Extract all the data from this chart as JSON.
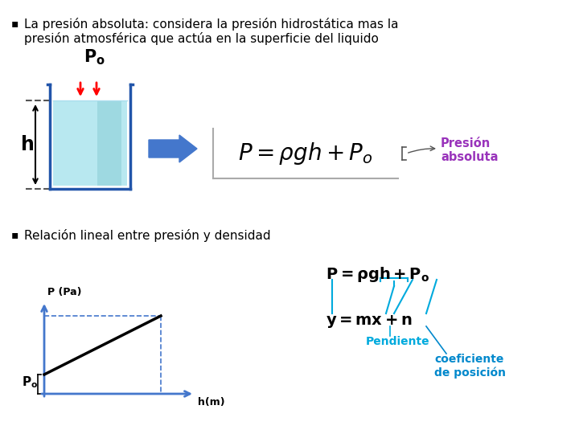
{
  "bg_color": "#ffffff",
  "bullet1_text1": "La presión absoluta: considera la presión hidrostática mas la",
  "bullet1_text2": "presión atmosférica que actúa en la superficie del liquido",
  "bullet2_text": "Relación lineal entre presión y densidad",
  "formula_box_text": "$P = \\rho gh + P_o$",
  "presion_absoluta_label": "Presión\nabsoluta",
  "presion_absoluta_color": "#9933bb",
  "graph_ylabel": "P (Pa)",
  "graph_xlabel": "h(m)",
  "pendiente_label": "Pendiente",
  "coef_label": "coeficiente\nde posición",
  "pendiente_color": "#00aadd",
  "coef_color": "#0088cc",
  "arrow_color": "#4477cc",
  "container_wall": "#2255aa",
  "liquid_top": "#c8eef5",
  "liquid_mid": "#7ecfd8",
  "liquid_bot": "#5ab8c8"
}
